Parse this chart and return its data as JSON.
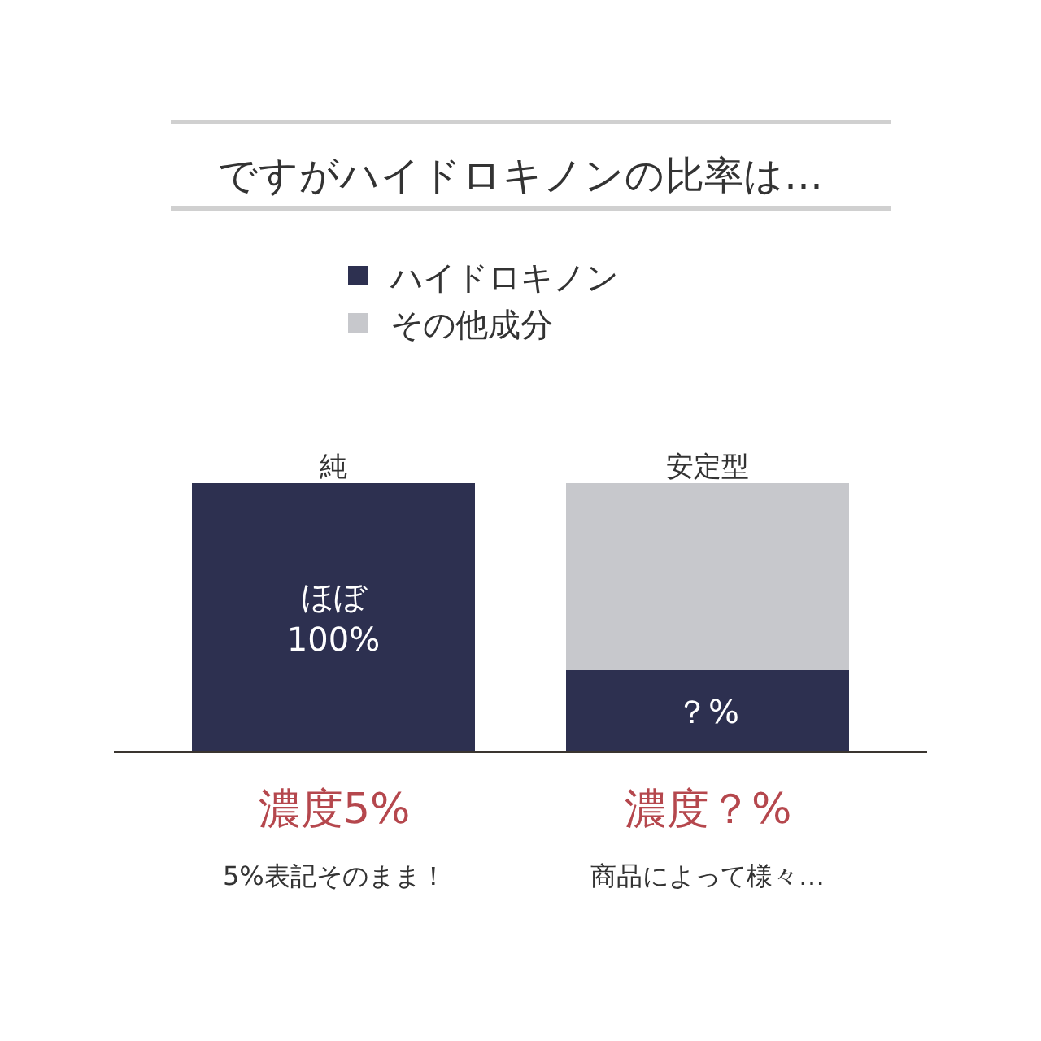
{
  "chart_data": {
    "type": "bar",
    "title": "ですがハイドロキノンの比率は…",
    "categories": [
      "純",
      "安定型"
    ],
    "ylim": [
      0,
      100
    ],
    "stacked": true,
    "legend": "top",
    "series": [
      {
        "name": "ハイドロキノン",
        "color": "#2d3050",
        "values": [
          100,
          31
        ],
        "value_labels": [
          "ほぼ\n100%",
          "？%"
        ]
      },
      {
        "name": "その他成分",
        "color": "#c7c8cc",
        "values": [
          0,
          69
        ],
        "value_labels": [
          null,
          null
        ]
      }
    ],
    "annotations": [
      "濃度5%",
      "5%表記そのまま！",
      "濃度？%",
      "商品によって様々…"
    ]
  }
}
